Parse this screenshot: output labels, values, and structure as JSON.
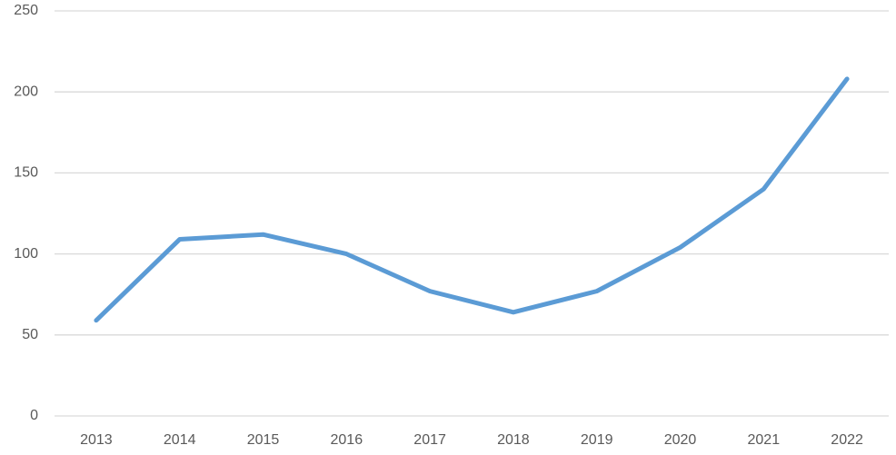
{
  "chart_data": {
    "type": "line",
    "categories": [
      "2013",
      "2014",
      "2015",
      "2016",
      "2017",
      "2018",
      "2019",
      "2020",
      "2021",
      "2022"
    ],
    "series": [
      {
        "color": "#5b9bd5",
        "values": [
          59,
          109,
          112,
          100,
          77,
          64,
          77,
          104,
          140,
          208
        ]
      }
    ],
    "ylim": [
      0,
      250
    ],
    "yticks": [
      0,
      50,
      100,
      150,
      200,
      250
    ],
    "grid": true
  }
}
